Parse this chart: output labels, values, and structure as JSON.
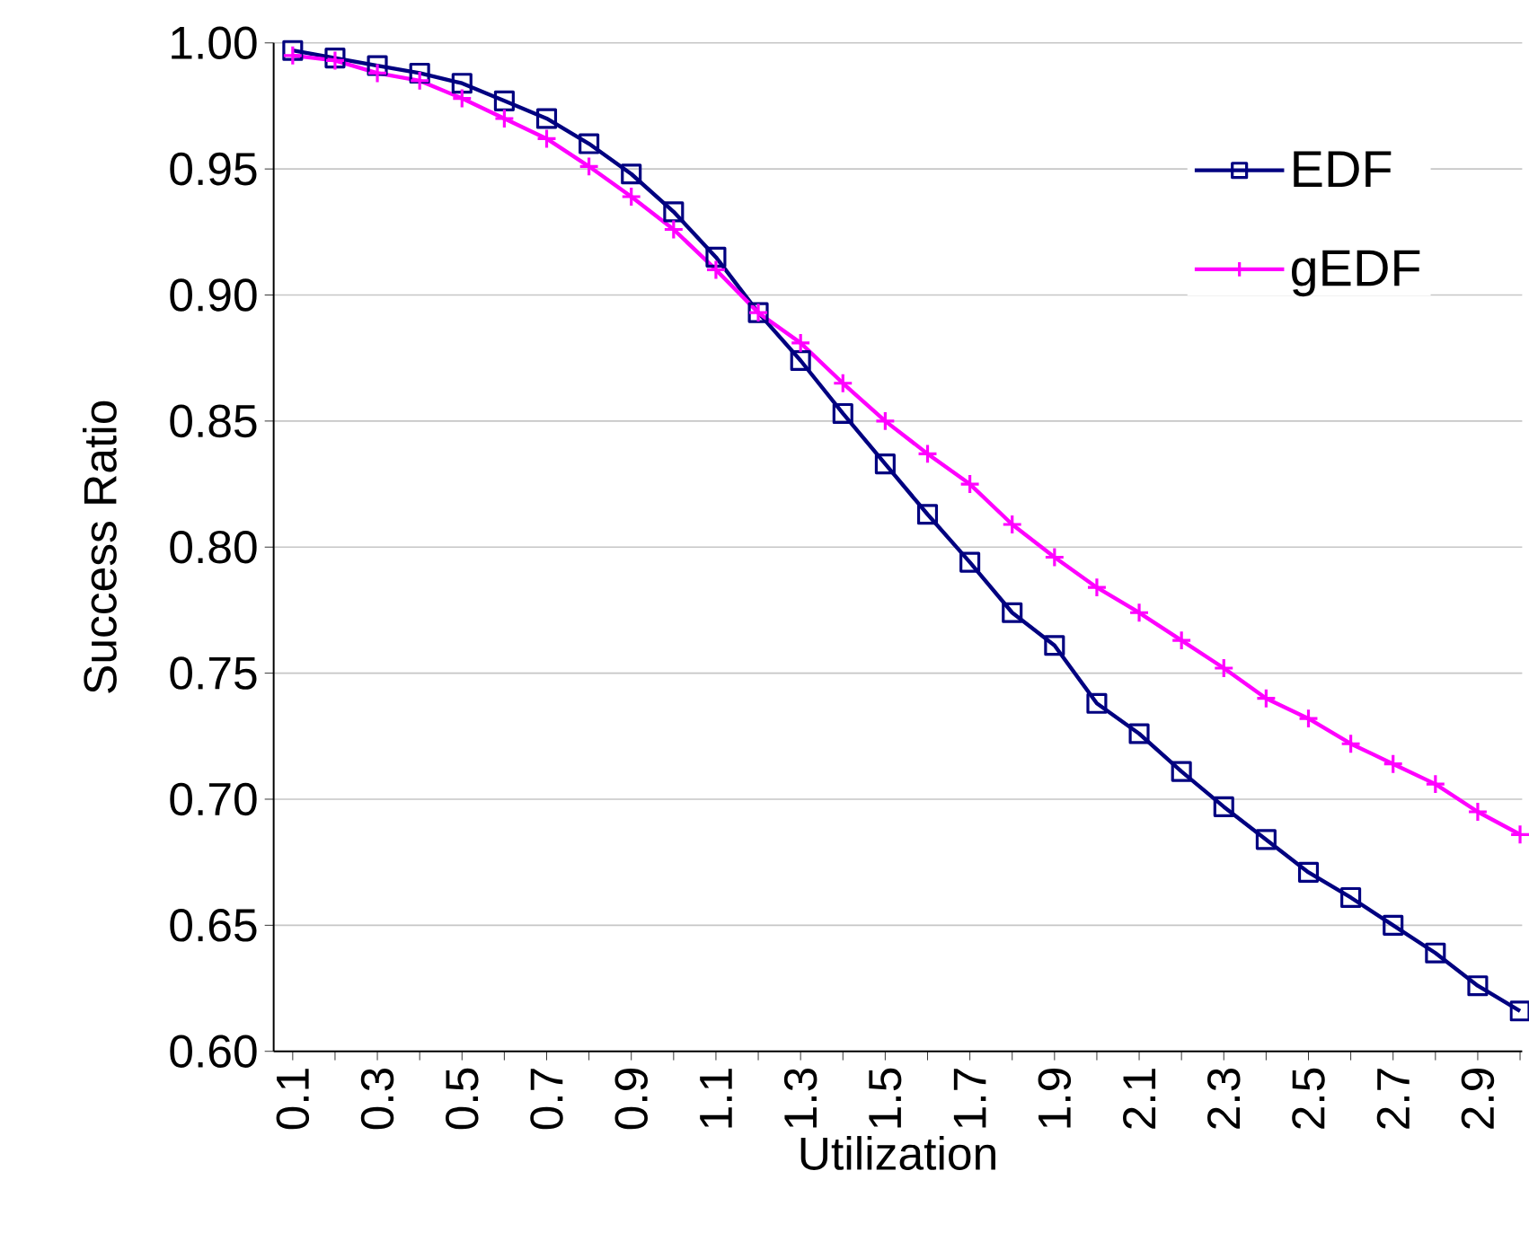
{
  "chart_data": {
    "type": "line",
    "xlabel": "Utilization",
    "ylabel": "Success Ratio",
    "categories": [
      "0.1",
      null,
      "0.3",
      null,
      "0.5",
      null,
      "0.7",
      null,
      "0.9",
      null,
      "1.1",
      null,
      "1.3",
      null,
      "1.5",
      null,
      "1.7",
      null,
      "1.9",
      null,
      "2.1",
      null,
      "2.3",
      null,
      "2.5",
      null,
      "2.7",
      null,
      "2.9",
      null
    ],
    "series": [
      {
        "name": "EDF",
        "color": "#000080",
        "marker": "square",
        "values": [
          0.997,
          0.994,
          0.991,
          0.988,
          0.984,
          0.977,
          0.97,
          0.96,
          0.948,
          0.933,
          0.915,
          0.893,
          0.874,
          0.853,
          0.833,
          0.813,
          0.794,
          0.774,
          0.761,
          0.738,
          0.726,
          0.711,
          0.697,
          0.684,
          0.671,
          0.661,
          0.65,
          0.639,
          0.626,
          0.616
        ]
      },
      {
        "name": "gEDF",
        "color": "#ff00ff",
        "marker": "cross",
        "values": [
          0.995,
          0.993,
          0.988,
          0.985,
          0.978,
          0.97,
          0.962,
          0.951,
          0.939,
          0.926,
          0.91,
          0.893,
          0.881,
          0.865,
          0.85,
          0.837,
          0.825,
          0.809,
          0.796,
          0.784,
          0.774,
          0.763,
          0.752,
          0.74,
          0.732,
          0.722,
          0.714,
          0.706,
          0.695,
          0.686
        ]
      }
    ],
    "ylim": [
      0.6,
      1.0
    ],
    "yticks": [
      {
        "value": 0.6,
        "label": "0.60"
      },
      {
        "value": 0.65,
        "label": "0.65"
      },
      {
        "value": 0.7,
        "label": "0.70"
      },
      {
        "value": 0.75,
        "label": "0.75"
      },
      {
        "value": 0.8,
        "label": "0.80"
      },
      {
        "value": 0.85,
        "label": "0.85"
      },
      {
        "value": 0.9,
        "label": "0.90"
      },
      {
        "value": 0.95,
        "label": "0.95"
      },
      {
        "value": 1.0,
        "label": "1.00"
      }
    ],
    "grid": "y",
    "legend": "top right"
  }
}
